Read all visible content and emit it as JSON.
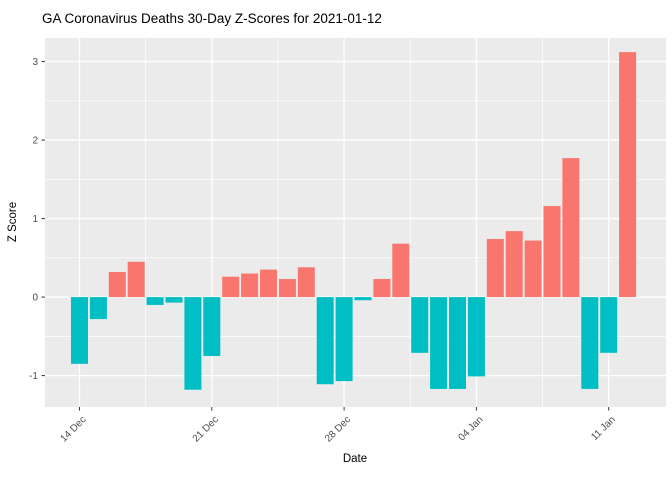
{
  "chart_data": {
    "type": "bar",
    "title": "GA Coronavirus Deaths 30-Day Z-Scores for 2021-01-12",
    "xlabel": "Date",
    "ylabel": "Z Score",
    "categories": [
      "14 Dec",
      "15 Dec",
      "16 Dec",
      "17 Dec",
      "18 Dec",
      "19 Dec",
      "20 Dec",
      "21 Dec",
      "22 Dec",
      "23 Dec",
      "24 Dec",
      "25 Dec",
      "26 Dec",
      "27 Dec",
      "28 Dec",
      "29 Dec",
      "30 Dec",
      "31 Dec",
      "01 Jan",
      "02 Jan",
      "03 Jan",
      "04 Jan",
      "05 Jan",
      "06 Jan",
      "07 Jan",
      "08 Jan",
      "09 Jan",
      "10 Jan",
      "11 Jan",
      "12 Jan"
    ],
    "values": [
      -0.85,
      -0.28,
      0.32,
      0.45,
      -0.1,
      -0.07,
      -1.18,
      -0.75,
      0.26,
      0.3,
      0.35,
      0.23,
      0.38,
      -1.11,
      -1.07,
      -0.04,
      0.23,
      0.68,
      -0.71,
      -1.17,
      -1.17,
      -1.01,
      0.74,
      0.84,
      0.72,
      1.16,
      1.77,
      -1.17,
      -0.71,
      3.12
    ],
    "x_tick_labels": [
      "14 Dec",
      "21 Dec",
      "28 Dec",
      "04 Jan",
      "11 Jan"
    ],
    "x_tick_indices": [
      0,
      7,
      14,
      21,
      28
    ],
    "y_ticks": [
      -1,
      0,
      1,
      2,
      3
    ],
    "y_minor_ticks": [
      -0.5,
      0.5,
      1.5,
      2.5
    ],
    "ylim": [
      -1.4,
      3.3
    ],
    "grid": "white major and minor gridlines on grey panel",
    "legend_position": "none",
    "colors": {
      "positive_bar": "#F8766D",
      "negative_bar": "#00BFC4",
      "panel_background": "#EBEBEB",
      "gridline": "#FFFFFF",
      "tick_label": "#4D4D4D",
      "tick_mark": "#333333",
      "title_text": "#000000",
      "page_background": "#FFFFFF"
    }
  }
}
